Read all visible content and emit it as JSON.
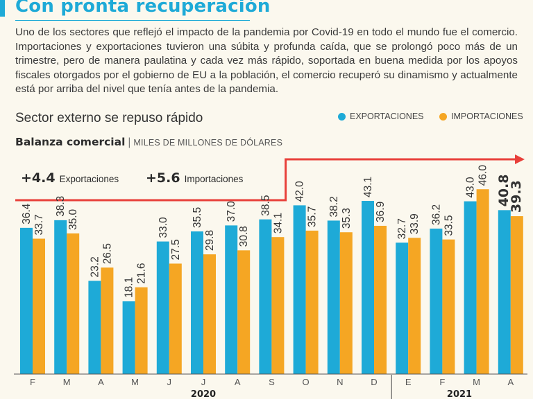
{
  "header": {
    "title": "Con pronta recuperación",
    "intro": "Uno de los sectores que reflejó el impacto de la pandemia por Covid-19 en todo el mundo fue el comercio. Importaciones y exportaciones tuvieron una súbita y profunda caída, que se prolongó poco más de un trimestre, pero de manera paulatina y cada vez más rápido, soportada en buena medida por los apoyos fiscales otorgados por el gobierno de EU a la población, el comercio recuperó su dinamismo y actualmente está por arriba del nivel que tenía antes de la pandemia.",
    "subtitle": "Sector externo se repuso rápido"
  },
  "colors": {
    "exportaciones": "#1eaad7",
    "importaciones": "#f5a623",
    "accent_line": "#e8403a",
    "title": "#1eaad7"
  },
  "chart_data": {
    "type": "bar",
    "title": "Balanza comercial",
    "unit": "MILES DE MILLONES DE DÓLARES",
    "categories": [
      "F",
      "M",
      "A",
      "M",
      "J",
      "J",
      "A",
      "S",
      "O",
      "N",
      "D",
      "E",
      "F",
      "M",
      "A"
    ],
    "year_groups": [
      {
        "label": "2020",
        "start": 0,
        "end": 10
      },
      {
        "label": "2021",
        "start": 11,
        "end": 14
      }
    ],
    "series": [
      {
        "name": "EXPORTACIONES",
        "values": [
          36.4,
          38.3,
          23.2,
          18.1,
          33.0,
          35.5,
          37.0,
          38.5,
          42.0,
          38.2,
          43.1,
          32.7,
          36.2,
          43.0,
          40.8
        ]
      },
      {
        "name": "IMPORTACIONES",
        "values": [
          33.7,
          35.0,
          26.5,
          21.6,
          27.5,
          29.8,
          30.8,
          34.1,
          35.7,
          35.3,
          36.9,
          33.9,
          33.5,
          46.0,
          39.3
        ]
      }
    ],
    "value_labels": {
      "EXPORTACIONES": [
        "36.4",
        "38.3",
        "23.2",
        "18.1",
        "33.0",
        "35.5",
        "37.0",
        "38.5",
        "42.0",
        "38.2",
        "43.1",
        "32.7",
        "36.2",
        "43.0",
        "40.8"
      ],
      "IMPORTACIONES": [
        "33.7",
        "35.0",
        "26.5",
        "21.6",
        "27.5",
        "29.8",
        "30.8",
        "34.1",
        "35.7",
        "35.3",
        "36.9",
        "33.9",
        "33.5",
        "46.0",
        "39.3"
      ]
    },
    "highlight_last": true,
    "ylim": [
      0,
      50
    ],
    "annotations": [
      {
        "value": "+4.4",
        "label": "Exportaciones"
      },
      {
        "value": "+5.6",
        "label": "Importaciones"
      }
    ],
    "step_change_after_index": 7
  }
}
